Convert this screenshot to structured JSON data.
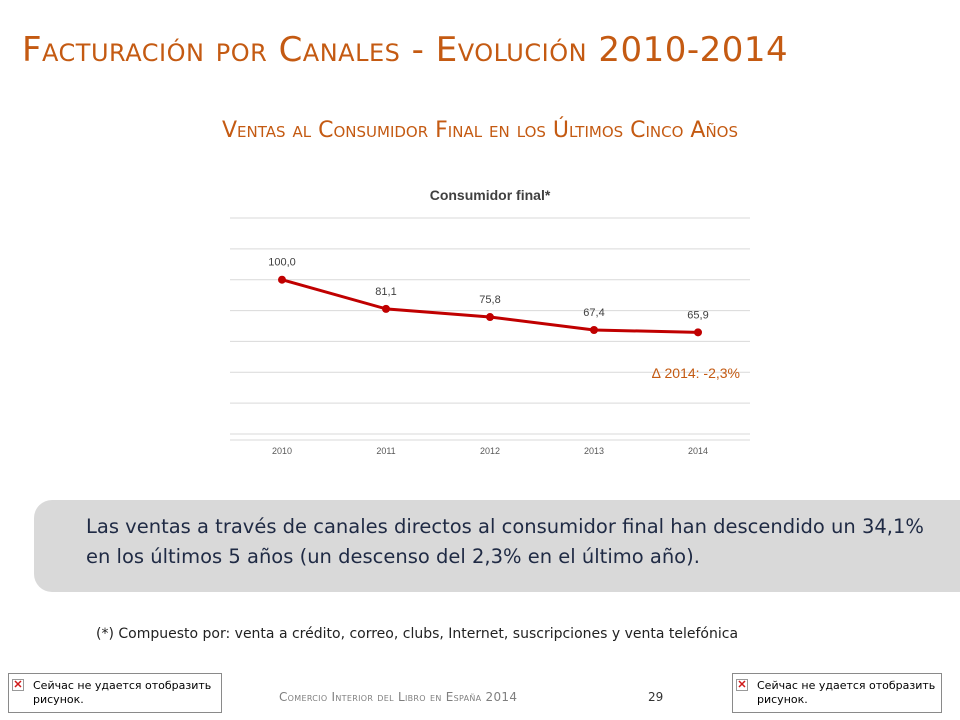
{
  "slide": {
    "title": "Facturación por Canales - Evolución 2010-2014",
    "subtitle": "Ventas al Consumidor Final en los Últimos Cinco Años",
    "callout": "Las ventas a través de canales directos al consumidor final han descendido un 34,1% en los últimos 5 años (un descenso del 2,3% en el último año).",
    "footnote": "(*) Compuesto por:  venta a crédito, correo, clubs, Internet, suscripciones y venta telefónica",
    "footer": "Comercio Interior del Libro en España 2014",
    "page_number": "29",
    "broken_image_msg_left": "Сейчас не удается отобразить рисунок.",
    "broken_image_msg_right": "Сейчас не удается отобразить рисунок."
  },
  "chart_data": {
    "type": "line",
    "title": "Consumidor final*",
    "categories": [
      "2010",
      "2011",
      "2012",
      "2013",
      "2014"
    ],
    "series": [
      {
        "values": [
          100.0,
          81.1,
          75.8,
          67.4,
          65.9
        ]
      }
    ],
    "data_labels": [
      "100,0",
      "81,1",
      "75,8",
      "67,4",
      "65,9"
    ],
    "annotation": "∆ 2014:  -2,3%",
    "ylim": [
      0,
      140
    ],
    "grid": true,
    "line_color": "#c00000",
    "annotation_color": "#c45a12"
  }
}
